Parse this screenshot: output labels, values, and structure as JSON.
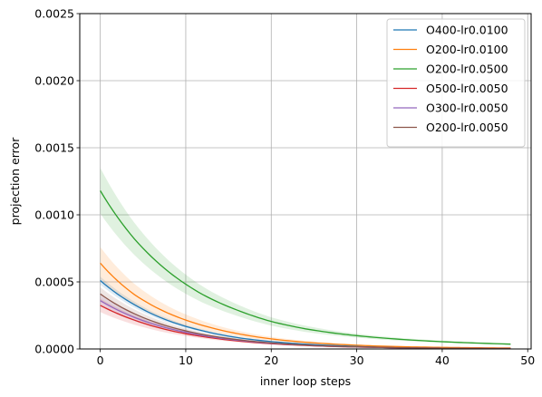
{
  "chart_data": {
    "type": "line",
    "xlabel": "inner loop steps",
    "ylabel": "projection error",
    "xlim": [
      -2.4,
      50.4
    ],
    "ylim": [
      0,
      0.0025
    ],
    "xticks": [
      0,
      10,
      20,
      30,
      40,
      50
    ],
    "yticks": [
      0.0,
      0.0005,
      0.001,
      0.0015,
      0.002,
      0.0025
    ],
    "xtick_labels": [
      "0",
      "10",
      "20",
      "30",
      "40",
      "50"
    ],
    "ytick_labels": [
      "0.0000",
      "0.0005",
      "0.0010",
      "0.0015",
      "0.0020",
      "0.0025"
    ],
    "grid": true,
    "legend_position": "top-right",
    "x": [
      0,
      4,
      8,
      12,
      16,
      20,
      24,
      28,
      32,
      36,
      40,
      44,
      48
    ],
    "series": [
      {
        "name": "O400-lr0.0100",
        "color": "#1f77b4",
        "values": [
          0.00051,
          0.00033,
          0.00021,
          0.000135,
          8.5e-05,
          5.5e-05,
          3.6e-05,
          2.4e-05,
          1.6e-05,
          1.1e-05,
          8e-06,
          6e-06,
          5e-06
        ],
        "band": [
          3e-05,
          2.2e-05,
          1.5e-05,
          1e-05,
          7e-06,
          5e-06,
          4e-06,
          3e-06,
          2e-06,
          2e-06,
          1e-06,
          1e-06,
          1e-06
        ]
      },
      {
        "name": "O200-lr0.0100",
        "color": "#ff7f0e",
        "values": [
          0.00064,
          0.000405,
          0.000265,
          0.000175,
          0.000115,
          7.5e-05,
          5e-05,
          3.4e-05,
          2.3e-05,
          1.6e-05,
          1.2e-05,
          9e-06,
          7e-06
        ],
        "band": [
          0.00012,
          8e-05,
          5.2e-05,
          3.4e-05,
          2.2e-05,
          1.5e-05,
          1e-05,
          7e-06,
          5e-06,
          4e-06,
          3e-06,
          2e-06,
          2e-06
        ]
      },
      {
        "name": "O200-lr0.0500",
        "color": "#2ca02c",
        "values": [
          0.00118,
          0.00082,
          0.000575,
          0.000405,
          0.00029,
          0.000205,
          0.00015,
          0.000113,
          8.7e-05,
          6.8e-05,
          5.4e-05,
          4.4e-05,
          3.6e-05
        ],
        "band": [
          0.00017,
          0.00012,
          8.5e-05,
          6e-05,
          4.3e-05,
          3.1e-05,
          2.3e-05,
          1.7e-05,
          1.3e-05,
          1e-05,
          8e-06,
          7e-06,
          6e-06
        ]
      },
      {
        "name": "O500-lr0.0050",
        "color": "#d62728",
        "values": [
          0.000325,
          0.000215,
          0.00014,
          9.2e-05,
          6e-05,
          3.9e-05,
          2.6e-05,
          1.7e-05,
          1.2e-05,
          8e-06,
          6e-06,
          4e-06,
          3e-06
        ],
        "band": [
          5e-05,
          3.4e-05,
          2.2e-05,
          1.4e-05,
          9e-06,
          6e-06,
          4e-06,
          3e-06,
          2e-06,
          1e-06,
          1e-06,
          1e-06,
          1e-06
        ]
      },
      {
        "name": "O300-lr0.0050",
        "color": "#9467bd",
        "values": [
          0.00036,
          0.000235,
          0.000153,
          0.0001,
          6.5e-05,
          4.2e-05,
          2.8e-05,
          1.8e-05,
          1.2e-05,
          8e-06,
          6e-06,
          4e-06,
          3e-06
        ],
        "band": [
          4e-05,
          2.7e-05,
          1.8e-05,
          1.2e-05,
          8e-06,
          5e-06,
          3e-06,
          2e-06,
          2e-06,
          1e-06,
          1e-06,
          1e-06,
          1e-06
        ]
      },
      {
        "name": "O200-lr0.0050",
        "color": "#8c564b",
        "values": [
          0.00041,
          0.000262,
          0.000168,
          0.000108,
          7e-05,
          4.5e-05,
          2.9e-05,
          1.9e-05,
          1.3e-05,
          9e-06,
          6e-06,
          4e-06,
          3e-06
        ],
        "band": [
          5e-05,
          3.3e-05,
          2.1e-05,
          1.4e-05,
          9e-06,
          6e-06,
          4e-06,
          3e-06,
          2e-06,
          1e-06,
          1e-06,
          1e-06,
          1e-06
        ]
      }
    ]
  }
}
